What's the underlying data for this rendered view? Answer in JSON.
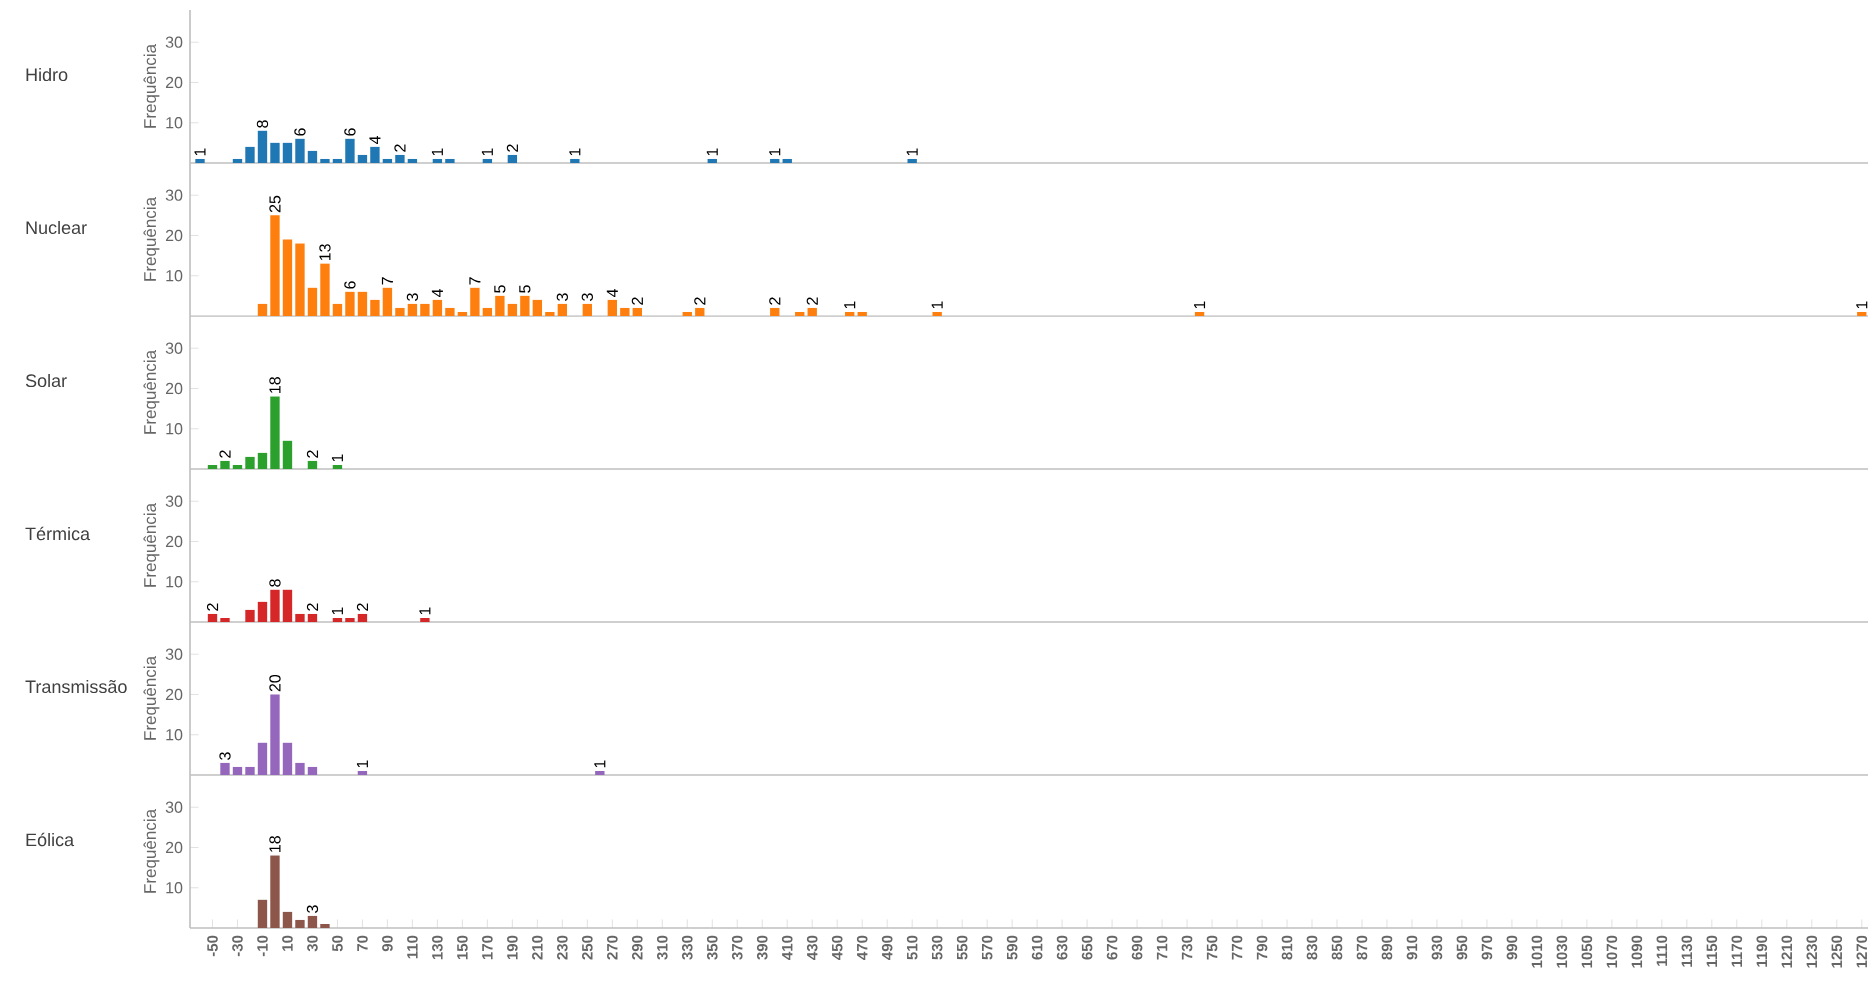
{
  "chart_data": [
    {
      "type": "bar",
      "title": "Hidro",
      "ylabel": "Frequência",
      "color": "#1f77b4",
      "xlim": [
        -68,
        1275
      ],
      "ylim": [
        0,
        38
      ],
      "yticks": [
        10,
        20,
        30
      ],
      "tick_labels": "y",
      "x": [
        -60,
        -30,
        -20,
        -10,
        0,
        10,
        20,
        30,
        40,
        50,
        60,
        70,
        80,
        90,
        100,
        110,
        130,
        140,
        170,
        190,
        240,
        350,
        400,
        410,
        510
      ],
      "values": [
        1,
        1,
        4,
        8,
        5,
        5,
        6,
        3,
        1,
        1,
        6,
        2,
        4,
        1,
        2,
        1,
        1,
        1,
        1,
        2,
        1,
        1,
        1,
        1,
        1
      ],
      "value_labels": [
        "1",
        null,
        null,
        "8",
        null,
        null,
        "6",
        null,
        null,
        null,
        "6",
        null,
        "4",
        null,
        "2",
        null,
        "1",
        null,
        "1",
        "2",
        "1",
        "1",
        "1",
        null,
        "1"
      ]
    },
    {
      "type": "bar",
      "title": "Nuclear",
      "ylabel": "Frequência",
      "color": "#ff7f0e",
      "xlim": [
        -68,
        1275
      ],
      "ylim": [
        0,
        38
      ],
      "yticks": [
        10,
        20,
        30
      ],
      "tick_labels": "y",
      "x": [
        -10,
        0,
        10,
        20,
        30,
        40,
        50,
        60,
        70,
        80,
        90,
        100,
        110,
        120,
        130,
        140,
        150,
        160,
        170,
        180,
        190,
        200,
        210,
        220,
        230,
        250,
        270,
        280,
        290,
        330,
        340,
        400,
        420,
        430,
        460,
        470,
        530,
        740,
        1270
      ],
      "values": [
        3,
        25,
        19,
        18,
        7,
        13,
        3,
        6,
        6,
        4,
        7,
        2,
        3,
        3,
        4,
        2,
        1,
        7,
        2,
        5,
        3,
        5,
        4,
        1,
        3,
        3,
        4,
        2,
        2,
        1,
        2,
        2,
        1,
        2,
        1,
        1,
        1,
        1,
        1
      ],
      "value_labels": [
        null,
        "25",
        null,
        null,
        null,
        "13",
        null,
        "6",
        null,
        null,
        "7",
        null,
        "3",
        null,
        "4",
        null,
        null,
        "7",
        null,
        "5",
        null,
        "5",
        null,
        null,
        "3",
        "3",
        "4",
        null,
        "2",
        null,
        "2",
        "2",
        null,
        "2",
        "1",
        null,
        "1",
        "1",
        "1"
      ]
    },
    {
      "type": "bar",
      "title": "Solar",
      "ylabel": "Frequência",
      "color": "#2ca02c",
      "xlim": [
        -68,
        1275
      ],
      "ylim": [
        0,
        38
      ],
      "yticks": [
        10,
        20,
        30
      ],
      "tick_labels": "y",
      "x": [
        -50,
        -40,
        -30,
        -20,
        -10,
        0,
        10,
        30,
        50
      ],
      "values": [
        1,
        2,
        1,
        3,
        4,
        18,
        7,
        2,
        1
      ],
      "value_labels": [
        null,
        "2",
        null,
        null,
        null,
        "18",
        null,
        "2",
        "1"
      ]
    },
    {
      "type": "bar",
      "title": "Térmica",
      "ylabel": "Frequência",
      "color": "#d62728",
      "xlim": [
        -68,
        1275
      ],
      "ylim": [
        0,
        38
      ],
      "yticks": [
        10,
        20,
        30
      ],
      "tick_labels": "y",
      "x": [
        -50,
        -40,
        -20,
        -10,
        0,
        10,
        20,
        30,
        50,
        60,
        70,
        120
      ],
      "values": [
        2,
        1,
        3,
        5,
        8,
        8,
        2,
        2,
        1,
        1,
        2,
        1
      ],
      "value_labels": [
        "2",
        null,
        null,
        null,
        "8",
        null,
        null,
        "2",
        "1",
        null,
        "2",
        "1"
      ]
    },
    {
      "type": "bar",
      "title": "Transmissão",
      "ylabel": "Frequência",
      "color": "#9467bd",
      "xlim": [
        -68,
        1275
      ],
      "ylim": [
        0,
        38
      ],
      "yticks": [
        10,
        20,
        30
      ],
      "tick_labels": "y",
      "x": [
        -40,
        -30,
        -20,
        -10,
        0,
        10,
        20,
        30,
        70,
        260
      ],
      "values": [
        3,
        2,
        2,
        8,
        20,
        8,
        3,
        2,
        1,
        1
      ],
      "value_labels": [
        "3",
        null,
        null,
        null,
        "20",
        null,
        null,
        null,
        "1",
        "1"
      ]
    },
    {
      "type": "bar",
      "title": "Eólica",
      "ylabel": "Frequência",
      "color": "#8c564b",
      "xlim": [
        -68,
        1275
      ],
      "ylim": [
        0,
        38
      ],
      "yticks": [
        10,
        20,
        30
      ],
      "xticks": [
        -50,
        -30,
        -10,
        10,
        30,
        50,
        70,
        90,
        110,
        130,
        150,
        170,
        190,
        210,
        230,
        250,
        270,
        290,
        310,
        330,
        350,
        370,
        390,
        410,
        430,
        450,
        470,
        490,
        510,
        530,
        550,
        570,
        590,
        610,
        630,
        650,
        670,
        690,
        710,
        730,
        750,
        770,
        790,
        810,
        830,
        850,
        870,
        890,
        910,
        930,
        950,
        970,
        990,
        1010,
        1030,
        1050,
        1070,
        1090,
        1110,
        1130,
        1150,
        1170,
        1190,
        1210,
        1230,
        1250,
        1270
      ],
      "x": [
        -10,
        0,
        10,
        20,
        30,
        40
      ],
      "values": [
        7,
        18,
        4,
        2,
        3,
        1
      ],
      "value_labels": [
        null,
        "18",
        null,
        null,
        "3",
        null
      ]
    }
  ]
}
